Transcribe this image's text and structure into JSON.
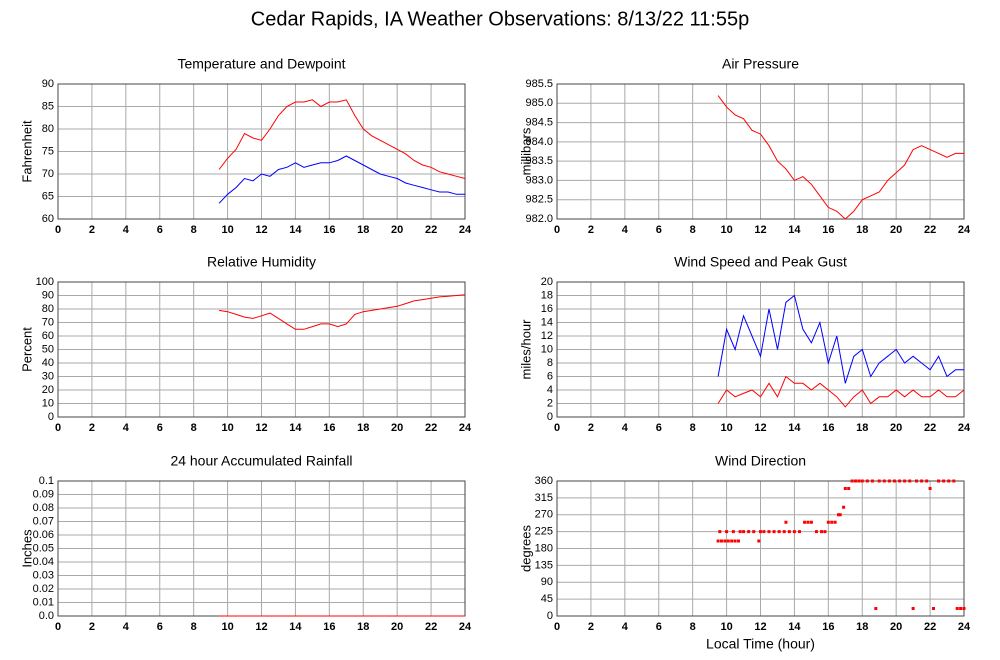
{
  "title": "Cedar Rapids, IA Weather Observations: 8/13/22 11:55p",
  "chart_data": [
    {
      "type": "line",
      "title": "Temperature and Dewpoint",
      "y_label": "Fahrenheit",
      "x": [
        9.5,
        10,
        10.5,
        11,
        11.5,
        12,
        12.5,
        13,
        13.5,
        14,
        14.5,
        15,
        15.5,
        16,
        16.5,
        17,
        17.5,
        18,
        18.5,
        19,
        19.5,
        20,
        20.5,
        21,
        21.5,
        22,
        22.5,
        23,
        23.5,
        24
      ],
      "series": [
        {
          "color": "#ff0000",
          "values": [
            71,
            73.5,
            75.5,
            79,
            78,
            77.5,
            80,
            83,
            85,
            86,
            86,
            86.5,
            85,
            86,
            86,
            86.5,
            83,
            80,
            78.5,
            77.5,
            76.5,
            75.5,
            74.5,
            73,
            72,
            71.5,
            70.5,
            70,
            69.5,
            69
          ]
        },
        {
          "color": "#0000ff",
          "values": [
            63.5,
            65.5,
            67,
            69,
            68.5,
            70,
            69.5,
            71,
            71.5,
            72.5,
            71.5,
            72,
            72.5,
            72.5,
            73,
            74,
            73,
            72,
            71,
            70,
            69.5,
            69,
            68,
            67.5,
            67,
            66.5,
            66,
            66,
            65.5,
            65.5
          ]
        }
      ],
      "xlim": [
        0,
        24
      ],
      "xticks": [
        0,
        2,
        4,
        6,
        8,
        10,
        12,
        14,
        16,
        18,
        20,
        22,
        24
      ],
      "ylim": [
        60,
        90
      ],
      "yticks": [
        60,
        65,
        70,
        75,
        80,
        85,
        90
      ],
      "grid": true
    },
    {
      "type": "line",
      "title": "Air Pressure",
      "y_label": "millibars",
      "x": [
        9.5,
        10,
        10.5,
        11,
        11.5,
        12,
        12.5,
        13,
        13.5,
        14,
        14.5,
        15,
        15.5,
        16,
        16.5,
        17,
        17.5,
        18,
        18.5,
        19,
        19.5,
        20,
        20.5,
        21,
        21.5,
        22,
        22.5,
        23,
        23.5,
        24
      ],
      "series": [
        {
          "color": "#ff0000",
          "values": [
            985.2,
            984.9,
            984.7,
            984.6,
            984.3,
            984.2,
            983.9,
            983.5,
            983.3,
            983.0,
            983.1,
            982.9,
            982.6,
            982.3,
            982.2,
            982.0,
            982.2,
            982.5,
            982.6,
            982.7,
            983.0,
            983.2,
            983.4,
            983.8,
            983.9,
            983.8,
            983.7,
            983.6,
            983.7,
            983.7
          ]
        }
      ],
      "xlim": [
        0,
        24
      ],
      "xticks": [
        0,
        2,
        4,
        6,
        8,
        10,
        12,
        14,
        16,
        18,
        20,
        22,
        24
      ],
      "ylim": [
        982,
        985.5
      ],
      "yticks": [
        {
          "value": 982,
          "label": "982.0"
        },
        982.5,
        {
          "value": 983,
          "label": "983.0"
        },
        983.5,
        {
          "value": 984,
          "label": "984.0"
        },
        984.5,
        {
          "value": 985,
          "label": "985.0"
        },
        985.5
      ],
      "grid": true
    },
    {
      "type": "line",
      "title": "Relative Humidity",
      "y_label": "Percent",
      "x": [
        9.5,
        10,
        10.5,
        11,
        11.5,
        12,
        12.5,
        13,
        13.5,
        14,
        14.5,
        15,
        15.5,
        16,
        16.5,
        17,
        17.5,
        18,
        18.5,
        19,
        19.5,
        20,
        20.5,
        21,
        21.5,
        22,
        22.5,
        23,
        23.5,
        24
      ],
      "series": [
        {
          "color": "#ff0000",
          "values": [
            79,
            78,
            76,
            74,
            73,
            75,
            77,
            73,
            69,
            65,
            65,
            67,
            69,
            69,
            67,
            69,
            76,
            78,
            79,
            80,
            81,
            82,
            84,
            86,
            87,
            88,
            89,
            89.5,
            90,
            90.5
          ]
        }
      ],
      "xlim": [
        0,
        24
      ],
      "xticks": [
        0,
        2,
        4,
        6,
        8,
        10,
        12,
        14,
        16,
        18,
        20,
        22,
        24
      ],
      "ylim": [
        0,
        100
      ],
      "yticks": [
        0,
        10,
        20,
        30,
        40,
        50,
        60,
        70,
        80,
        90,
        100
      ],
      "grid": true
    },
    {
      "type": "line",
      "title": "Wind Speed and Peak Gust",
      "y_label": "miles/hour",
      "x": [
        9.5,
        10,
        10.5,
        11,
        11.5,
        12,
        12.5,
        13,
        13.5,
        14,
        14.5,
        15,
        15.5,
        16,
        16.5,
        17,
        17.5,
        18,
        18.5,
        19,
        19.5,
        20,
        20.5,
        21,
        21.5,
        22,
        22.5,
        23,
        23.5,
        24
      ],
      "series": [
        {
          "color": "#0000ff",
          "values": [
            6,
            13,
            10,
            15,
            12,
            9,
            16,
            10,
            17,
            18,
            13,
            11,
            14,
            8,
            12,
            5,
            9,
            10,
            6,
            8,
            9,
            10,
            8,
            9,
            8,
            7,
            9,
            6,
            7,
            7
          ]
        },
        {
          "color": "#ff0000",
          "values": [
            2,
            4,
            3,
            3.5,
            4,
            3,
            5,
            3,
            6,
            5,
            5,
            4,
            5,
            4,
            3,
            1.5,
            3,
            4,
            2,
            3,
            3,
            4,
            3,
            4,
            3,
            3,
            4,
            3,
            3,
            4
          ]
        }
      ],
      "xlim": [
        0,
        24
      ],
      "xticks": [
        0,
        2,
        4,
        6,
        8,
        10,
        12,
        14,
        16,
        18,
        20,
        22,
        24
      ],
      "ylim": [
        0,
        20
      ],
      "yticks": [
        0,
        2,
        4,
        6,
        8,
        10,
        12,
        14,
        16,
        18,
        20
      ],
      "grid": true
    },
    {
      "type": "line",
      "title": "24 hour Accumulated Rainfall",
      "y_label": "Inches",
      "x": [
        9.5,
        24
      ],
      "series": [
        {
          "color": "#ff0000",
          "values": [
            0,
            0
          ]
        }
      ],
      "xlim": [
        0,
        24
      ],
      "xticks": [
        0,
        2,
        4,
        6,
        8,
        10,
        12,
        14,
        16,
        18,
        20,
        22,
        24
      ],
      "ylim": [
        0,
        0.1
      ],
      "yticks": [
        {
          "value": 0,
          "label": "0.0"
        },
        0.01,
        0.02,
        0.03,
        0.04,
        0.05,
        0.06,
        0.07,
        0.08,
        0.09,
        0.1
      ],
      "grid": true
    },
    {
      "type": "scatter",
      "title": "Wind Direction",
      "y_label": "degrees",
      "x_label": "Local Time (hour)",
      "x": [
        9.5,
        9.7,
        9.9,
        10.1,
        10.3,
        10.5,
        10.7,
        9.6,
        10.0,
        10.4,
        10.8,
        11.0,
        11.3,
        11.6,
        11.9,
        12.0,
        12.2,
        12.5,
        12.8,
        13.1,
        13.4,
        13.5,
        13.7,
        14.0,
        14.3,
        14.6,
        14.8,
        15.0,
        15.3,
        15.6,
        15.8,
        16.0,
        16.2,
        16.4,
        16.6,
        16.7,
        16.9,
        17.0,
        17.2,
        17.4,
        17.6,
        17.8,
        18.0,
        18.3,
        18.6,
        18.8,
        19.0,
        19.3,
        19.6,
        19.9,
        20.2,
        20.5,
        20.8,
        21.0,
        21.2,
        21.5,
        21.8,
        22.0,
        22.2,
        22.5,
        22.8,
        23.1,
        23.4,
        23.6,
        23.8,
        24.0
      ],
      "series": [
        {
          "color": "#ff0000",
          "values": [
            200,
            200,
            200,
            200,
            200,
            200,
            200,
            225,
            225,
            225,
            225,
            225,
            225,
            225,
            200,
            225,
            225,
            225,
            225,
            225,
            225,
            250,
            225,
            225,
            225,
            250,
            250,
            250,
            225,
            225,
            225,
            250,
            250,
            250,
            270,
            270,
            290,
            340,
            340,
            360,
            360,
            360,
            360,
            360,
            360,
            20,
            360,
            360,
            360,
            360,
            360,
            360,
            360,
            20,
            360,
            360,
            360,
            340,
            20,
            360,
            360,
            360,
            360,
            20,
            20,
            20
          ]
        }
      ],
      "xlim": [
        0,
        24
      ],
      "xticks": [
        0,
        2,
        4,
        6,
        8,
        10,
        12,
        14,
        16,
        18,
        20,
        22,
        24
      ],
      "ylim": [
        0,
        360
      ],
      "yticks": [
        0,
        45,
        90,
        135,
        180,
        225,
        270,
        315,
        360
      ],
      "grid": true
    }
  ]
}
